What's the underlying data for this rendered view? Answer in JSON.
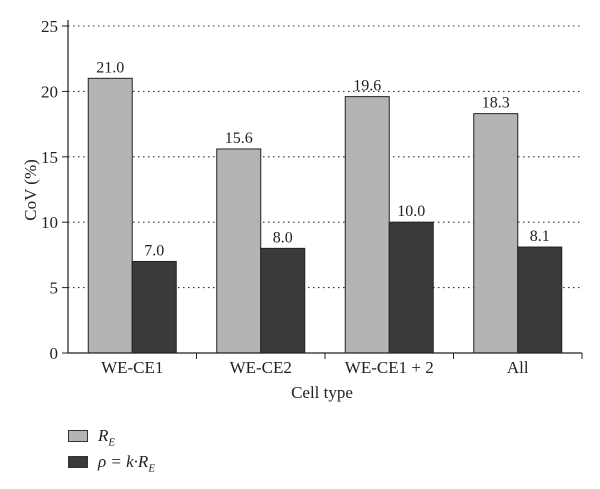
{
  "chart_data": {
    "type": "bar",
    "categories": [
      "WE-CE1",
      "WE-CE2",
      "WE-CE1 + 2",
      "All"
    ],
    "series": [
      {
        "name": "R_E",
        "values": [
          21.0,
          15.6,
          19.6,
          18.3
        ],
        "color": "#b4b4b4"
      },
      {
        "name": "ρ = k·R_E",
        "values": [
          7.0,
          8.0,
          10.0,
          8.1
        ],
        "color": "#3a3a3a"
      }
    ],
    "value_labels": [
      [
        "21.0",
        "15.6",
        "19.6",
        "18.3"
      ],
      [
        "7.0",
        "8.0",
        "10.0",
        "8.1"
      ]
    ],
    "xlabel": "Cell type",
    "ylabel": "CoV (%)",
    "ylim": [
      0,
      25
    ],
    "yticks": [
      0,
      5,
      10,
      15,
      20,
      25
    ],
    "grid": "horizontal dotted",
    "legend_position": "bottom-left"
  },
  "legend": {
    "item1": {
      "main": "R",
      "sub": "E"
    },
    "item2": {
      "prefix": "ρ = k·R",
      "sub": "E"
    }
  }
}
